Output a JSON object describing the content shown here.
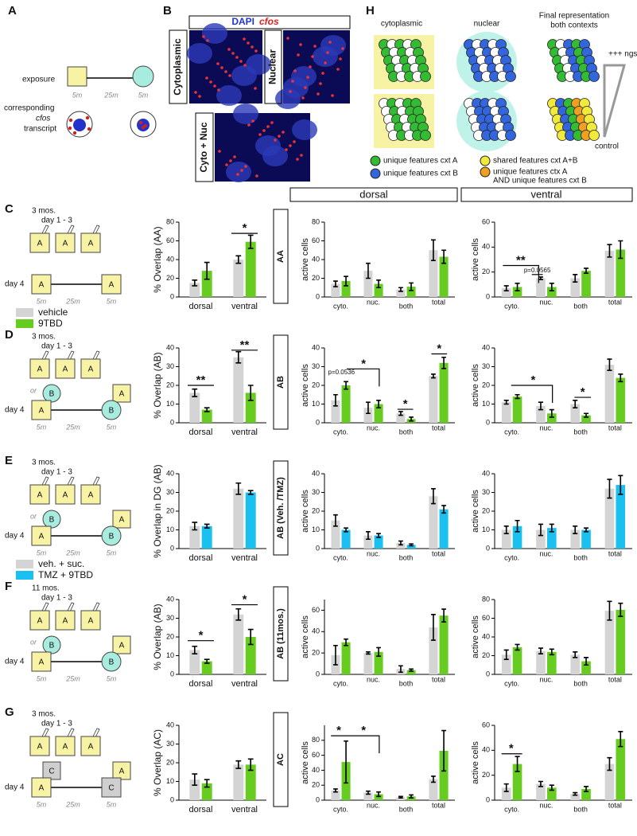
{
  "panel_a": {
    "label": "A",
    "exposure": "exposure",
    "times": [
      "5m",
      "25m",
      "5m"
    ],
    "transcript": [
      "corresponding",
      "cfos",
      "transcript"
    ]
  },
  "panel_b": {
    "label": "B",
    "stain": [
      "DAPI",
      "cfos"
    ],
    "images": [
      "Cytoplasmic",
      "Nuclear",
      "Cyto + Nuc"
    ]
  },
  "panel_h": {
    "label": "H",
    "columns": [
      "cytoplasmic",
      "nuclear"
    ],
    "final": [
      "Final representation",
      "both contexts"
    ],
    "scale": [
      "+++ ngs",
      "control"
    ],
    "legend": [
      "unique features cxt A",
      "unique features cxt B",
      "shared features cxt A+B",
      "unique features ctx A",
      "AND unique features cxt B"
    ]
  },
  "headers": [
    "dorsal",
    "ventral"
  ],
  "rows": [
    {
      "label": "C",
      "context": "AA",
      "schematic": {
        "age": "3 mos.",
        "days": "day 1 - 3",
        "train": [
          "A",
          "A",
          "A"
        ],
        "day4": "day 4",
        "test": [
          "A",
          "A"
        ],
        "times": [
          "5m",
          "25m",
          "5m"
        ]
      },
      "legend": [
        {
          "name": "vehicle",
          "color": "#d4d4d4"
        },
        {
          "name": "9TBD",
          "color": "#66cc1f"
        }
      ]
    },
    {
      "label": "D",
      "context": "AB",
      "schematic": {
        "age": "3 mos.",
        "days": "day 1 - 3",
        "train": [
          "A",
          "A",
          "A"
        ],
        "day4": "day 4",
        "or": "or",
        "test": [
          "A",
          "B"
        ],
        "alt": [
          "B",
          "A"
        ],
        "times": [
          "5m",
          "25m",
          "5m"
        ]
      }
    },
    {
      "label": "E",
      "context": "AB (Veh. /TMZ)",
      "schematic": {
        "age": "3 mos.",
        "days": "day 1 - 3",
        "train": [
          "A",
          "A",
          "A"
        ],
        "day4": "day 4",
        "or": "or",
        "test": [
          "A",
          "B"
        ],
        "alt": [
          "B",
          "A"
        ],
        "times": [
          "5m",
          "25m",
          "5m"
        ]
      },
      "legend": [
        {
          "name": "veh. + suc.",
          "color": "#d4d4d4"
        },
        {
          "name": "TMZ + 9TBD",
          "color": "#19c0f0"
        }
      ]
    },
    {
      "label": "F",
      "context": "AB (11mos.)",
      "schematic": {
        "age": "11 mos.",
        "days": "day 1 - 3",
        "train": [
          "A",
          "A",
          "A"
        ],
        "day4": "day 4",
        "or": "or",
        "test": [
          "A",
          "B"
        ],
        "alt": [
          "B",
          "A"
        ],
        "times": [
          "5m",
          "25m",
          "5m"
        ]
      }
    },
    {
      "label": "G",
      "context": "AC",
      "schematic": {
        "age": "3 mos.",
        "days": "day 1 - 3",
        "train": [
          "A",
          "A",
          "A"
        ],
        "day4": "day 4",
        "test": [
          "A",
          "C"
        ],
        "alt": [
          "C",
          "A"
        ],
        "times": [
          "5m",
          "25m",
          "5m"
        ]
      }
    }
  ],
  "chart_data": [
    {
      "type": "bar",
      "y_label": "% Overlap (AA)",
      "categories": [
        "dorsal",
        "ventral"
      ],
      "ylim": [
        0,
        80
      ],
      "yticks": [
        0,
        20,
        40,
        60,
        80
      ],
      "annotations": [
        "*"
      ],
      "series": [
        {
          "color": "#d4d4d4",
          "values": [
            15,
            40
          ],
          "errors": [
            3,
            4
          ]
        },
        {
          "color": "#66cc1f",
          "values": [
            28,
            59
          ],
          "errors": [
            9,
            7
          ]
        }
      ]
    },
    {
      "type": "bar",
      "y_label": "active cells",
      "categories": [
        "cyto.",
        "nuc.",
        "both",
        "total"
      ],
      "ylim": [
        0,
        80
      ],
      "yticks": [
        0,
        20,
        40,
        60,
        80
      ],
      "annotations": [],
      "series": [
        {
          "color": "#d4d4d4",
          "values": [
            14,
            28,
            8,
            50
          ],
          "errors": [
            3,
            8,
            2,
            11
          ]
        },
        {
          "color": "#66cc1f",
          "values": [
            17,
            14,
            11,
            43
          ],
          "errors": [
            5,
            4,
            4,
            7
          ]
        }
      ]
    },
    {
      "type": "bar",
      "y_label": "active cells",
      "categories": [
        "cyto.",
        "nuc.",
        "both",
        "total"
      ],
      "ylim": [
        0,
        60
      ],
      "yticks": [
        0,
        20,
        40,
        60
      ],
      "annotations": [
        "**",
        "p=0.0565"
      ],
      "series": [
        {
          "color": "#d4d4d4",
          "values": [
            7,
            15,
            15,
            37
          ],
          "errors": [
            2,
            1,
            3,
            5
          ]
        },
        {
          "color": "#66cc1f",
          "values": [
            8,
            8,
            21,
            38
          ],
          "errors": [
            3,
            3,
            2,
            7
          ]
        }
      ]
    },
    {
      "type": "bar",
      "y_label": "% Overlap (AB)",
      "categories": [
        "dorsal",
        "ventral"
      ],
      "ylim": [
        0,
        40
      ],
      "yticks": [
        0,
        10,
        20,
        30,
        40
      ],
      "annotations": [
        "**",
        "**"
      ],
      "series": [
        {
          "color": "#d4d4d4",
          "values": [
            16,
            35
          ],
          "errors": [
            2,
            3
          ]
        },
        {
          "color": "#66cc1f",
          "values": [
            7,
            16
          ],
          "errors": [
            1,
            4
          ]
        }
      ]
    },
    {
      "type": "bar",
      "y_label": "active cells",
      "categories": [
        "cyto.",
        "nuc.",
        "both",
        "total"
      ],
      "ylim": [
        0,
        40
      ],
      "yticks": [
        0,
        10,
        20,
        30,
        40
      ],
      "annotations": [
        "p=0.0536",
        "*",
        "*",
        "*"
      ],
      "series": [
        {
          "color": "#d4d4d4",
          "values": [
            12,
            8,
            5,
            25
          ],
          "errors": [
            3,
            3,
            1,
            1
          ]
        },
        {
          "color": "#66cc1f",
          "values": [
            20,
            10,
            2,
            32
          ],
          "errors": [
            2,
            2,
            1,
            3
          ]
        }
      ]
    },
    {
      "type": "bar",
      "y_label": "active cells",
      "categories": [
        "cyto.",
        "nuc.",
        "both",
        "total"
      ],
      "ylim": [
        0,
        40
      ],
      "yticks": [
        0,
        10,
        20,
        30,
        40
      ],
      "annotations": [
        "*",
        "*"
      ],
      "series": [
        {
          "color": "#d4d4d4",
          "values": [
            11,
            9,
            10,
            31
          ],
          "errors": [
            1,
            2,
            2,
            3
          ]
        },
        {
          "color": "#66cc1f",
          "values": [
            14,
            5,
            4,
            24
          ],
          "errors": [
            1,
            2,
            1,
            2
          ]
        }
      ]
    },
    {
      "type": "bar",
      "y_label": "% Overlap in DG (AB)",
      "categories": [
        "dorsal",
        "ventral"
      ],
      "ylim": [
        0,
        40
      ],
      "yticks": [
        0,
        10,
        20,
        30,
        40
      ],
      "annotations": [],
      "series": [
        {
          "color": "#d4d4d4",
          "values": [
            12,
            32
          ],
          "errors": [
            2,
            3
          ]
        },
        {
          "color": "#19c0f0",
          "values": [
            12,
            30
          ],
          "errors": [
            1,
            1
          ]
        }
      ]
    },
    {
      "type": "bar",
      "y_label": "active cells",
      "categories": [
        "cyto.",
        "nuc.",
        "both",
        "total"
      ],
      "ylim": [
        0,
        40
      ],
      "yticks": [
        0,
        10,
        20,
        30,
        40
      ],
      "annotations": [],
      "series": [
        {
          "color": "#d4d4d4",
          "values": [
            15,
            7,
            3,
            28
          ],
          "errors": [
            3,
            2,
            1,
            4
          ]
        },
        {
          "color": "#19c0f0",
          "values": [
            10,
            7,
            2,
            21
          ],
          "errors": [
            1,
            1,
            0.5,
            2
          ]
        }
      ]
    },
    {
      "type": "bar",
      "y_label": "active cells",
      "categories": [
        "cyto.",
        "nuc.",
        "both",
        "total"
      ],
      "ylim": [
        0,
        40
      ],
      "yticks": [
        0,
        10,
        20,
        30,
        40
      ],
      "annotations": [],
      "series": [
        {
          "color": "#d4d4d4",
          "values": [
            10,
            10,
            10,
            32
          ],
          "errors": [
            2,
            3,
            2,
            5
          ]
        },
        {
          "color": "#19c0f0",
          "values": [
            12,
            11,
            10,
            34
          ],
          "errors": [
            3,
            2,
            1,
            5
          ]
        }
      ]
    },
    {
      "type": "bar",
      "y_label": "% Overlap (AB)",
      "categories": [
        "dorsal",
        "ventral"
      ],
      "ylim": [
        0,
        40
      ],
      "yticks": [
        0,
        10,
        20,
        30,
        40
      ],
      "annotations": [
        "*",
        "*"
      ],
      "series": [
        {
          "color": "#d4d4d4",
          "values": [
            13,
            32
          ],
          "errors": [
            2,
            3
          ]
        },
        {
          "color": "#66cc1f",
          "values": [
            7,
            20
          ],
          "errors": [
            1,
            4
          ]
        }
      ]
    },
    {
      "type": "bar",
      "y_label": "active cells",
      "categories": [
        "cyto.",
        "nuc.",
        "both",
        "total"
      ],
      "ylim": [
        0,
        70
      ],
      "yticks": [
        0,
        20,
        40,
        60
      ],
      "annotations": [],
      "series": [
        {
          "color": "#d4d4d4",
          "values": [
            18,
            20,
            5,
            44
          ],
          "errors": [
            9,
            1,
            3,
            12
          ]
        },
        {
          "color": "#66cc1f",
          "values": [
            30,
            21,
            4,
            55
          ],
          "errors": [
            3,
            4,
            1,
            6
          ]
        }
      ]
    },
    {
      "type": "bar",
      "y_label": "active cells",
      "categories": [
        "cyto.",
        "nuc.",
        "both",
        "total"
      ],
      "ylim": [
        0,
        80
      ],
      "yticks": [
        0,
        20,
        40,
        60,
        80
      ],
      "annotations": [],
      "series": [
        {
          "color": "#d4d4d4",
          "values": [
            21,
            25,
            21,
            68
          ],
          "errors": [
            5,
            3,
            3,
            10
          ]
        },
        {
          "color": "#66cc1f",
          "values": [
            29,
            24,
            14,
            69
          ],
          "errors": [
            3,
            3,
            4,
            7
          ]
        }
      ]
    },
    {
      "type": "bar",
      "y_label": "% Overlap (AC)",
      "categories": [
        "dorsal",
        "ventral"
      ],
      "ylim": [
        0,
        40
      ],
      "yticks": [
        0,
        10,
        20,
        30,
        40
      ],
      "annotations": [],
      "series": [
        {
          "color": "#d4d4d4",
          "values": [
            11,
            19
          ],
          "errors": [
            3,
            2
          ]
        },
        {
          "color": "#66cc1f",
          "values": [
            9,
            19
          ],
          "errors": [
            2,
            3
          ]
        }
      ]
    },
    {
      "type": "bar",
      "y_label": "active cells",
      "categories": [
        "cyto.",
        "nuc.",
        "both",
        "total"
      ],
      "ylim": [
        0,
        100
      ],
      "yticks": [
        0,
        20,
        40,
        60,
        80
      ],
      "annotations": [
        "*",
        "*"
      ],
      "series": [
        {
          "color": "#d4d4d4",
          "values": [
            13,
            10,
            4,
            28
          ],
          "errors": [
            2,
            2,
            1,
            4
          ]
        },
        {
          "color": "#66cc1f",
          "values": [
            51,
            8,
            5,
            66
          ],
          "errors": [
            28,
            3,
            2,
            27
          ]
        }
      ]
    },
    {
      "type": "bar",
      "y_label": "active cells",
      "categories": [
        "cyto.",
        "nuc.",
        "both",
        "total"
      ],
      "ylim": [
        0,
        60
      ],
      "yticks": [
        0,
        20,
        40,
        60
      ],
      "annotations": [
        "*"
      ],
      "series": [
        {
          "color": "#d4d4d4",
          "values": [
            10,
            13,
            5,
            29
          ],
          "errors": [
            3,
            2,
            1,
            5
          ]
        },
        {
          "color": "#66cc1f",
          "values": [
            29,
            10,
            9,
            49
          ],
          "errors": [
            6,
            2,
            2,
            6
          ]
        }
      ]
    }
  ]
}
